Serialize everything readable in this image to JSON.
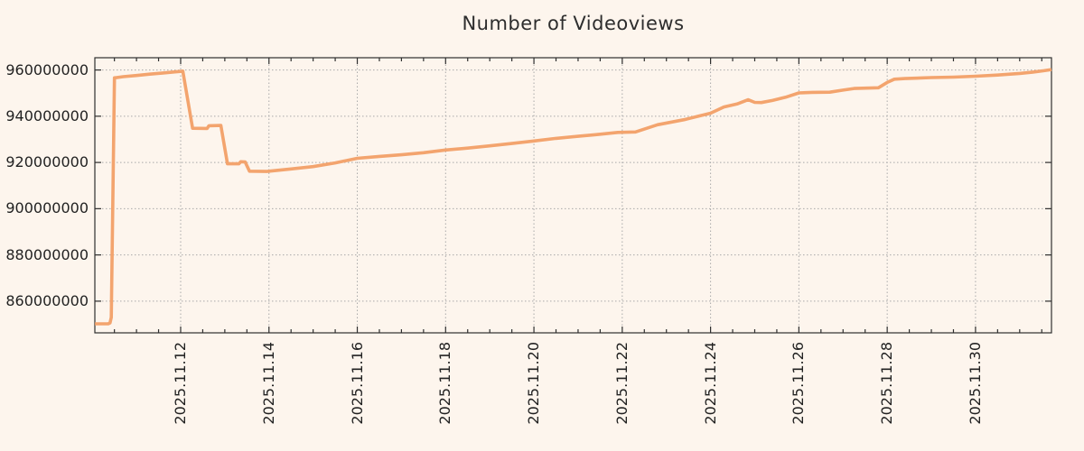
{
  "page": {
    "background": "#fdf5ed"
  },
  "colors": {
    "background": "#fdf5ed",
    "line": "#f3a46e",
    "grid": "#a9a9a9",
    "frame": "#2f2f2f",
    "text": "#222222",
    "title_text": "#2d2d2d"
  },
  "chart_data": {
    "type": "line",
    "title": "Number of Videoviews",
    "ylabel": "",
    "xlabel": "",
    "legend": "none",
    "grid": "dotted gray lines at every major x and y tick",
    "series": [
      {
        "name": "videoviews",
        "color": "#f3a46e",
        "points": [
          [
            10.06,
            850200000
          ],
          [
            10.36,
            850200000
          ],
          [
            10.4,
            850600000
          ],
          [
            10.43,
            853000000
          ],
          [
            10.5,
            956600000
          ],
          [
            10.7,
            957100000
          ],
          [
            11.0,
            957600000
          ],
          [
            11.3,
            958200000
          ],
          [
            11.6,
            958700000
          ],
          [
            11.9,
            959200000
          ],
          [
            12.05,
            959500000
          ],
          [
            12.27,
            934800000
          ],
          [
            12.6,
            934700000
          ],
          [
            12.64,
            935900000
          ],
          [
            12.91,
            936000000
          ],
          [
            13.06,
            919400000
          ],
          [
            13.32,
            919400000
          ],
          [
            13.36,
            920300000
          ],
          [
            13.46,
            920200000
          ],
          [
            13.56,
            916200000
          ],
          [
            13.95,
            916100000
          ],
          [
            14.5,
            917200000
          ],
          [
            15.0,
            918200000
          ],
          [
            15.5,
            919800000
          ],
          [
            16.0,
            921800000
          ],
          [
            16.5,
            922600000
          ],
          [
            17.0,
            923300000
          ],
          [
            17.5,
            924200000
          ],
          [
            18.0,
            925400000
          ],
          [
            18.5,
            926200000
          ],
          [
            19.0,
            927200000
          ],
          [
            19.5,
            928200000
          ],
          [
            20.0,
            929300000
          ],
          [
            20.5,
            930400000
          ],
          [
            21.0,
            931300000
          ],
          [
            21.4,
            932000000
          ],
          [
            21.9,
            933000000
          ],
          [
            22.3,
            933200000
          ],
          [
            22.8,
            936300000
          ],
          [
            23.4,
            938500000
          ],
          [
            24.0,
            941300000
          ],
          [
            24.3,
            944000000
          ],
          [
            24.6,
            945300000
          ],
          [
            24.85,
            947100000
          ],
          [
            25.0,
            946000000
          ],
          [
            25.15,
            945900000
          ],
          [
            25.4,
            946800000
          ],
          [
            25.7,
            948200000
          ],
          [
            26.0,
            950100000
          ],
          [
            26.3,
            950300000
          ],
          [
            26.7,
            950400000
          ],
          [
            27.0,
            951300000
          ],
          [
            27.25,
            952000000
          ],
          [
            27.8,
            952300000
          ],
          [
            28.0,
            954600000
          ],
          [
            28.16,
            956000000
          ],
          [
            28.4,
            956300000
          ],
          [
            29.0,
            956700000
          ],
          [
            29.5,
            956900000
          ],
          [
            30.0,
            957300000
          ],
          [
            30.5,
            957800000
          ],
          [
            31.0,
            958500000
          ],
          [
            31.3,
            959100000
          ],
          [
            31.55,
            959700000
          ],
          [
            31.72,
            960200000
          ]
        ]
      }
    ],
    "x_axis": {
      "note": "x values are decimal days counted in November 2025 (12 = 2025.11.12, 31.72 ~= 2025.12.01 17:00)",
      "xlim": [
        10.057,
        31.72
      ],
      "tick_values": [
        12,
        14,
        16,
        18,
        20,
        22,
        24,
        26,
        28,
        30
      ],
      "tick_labels": [
        "2025.11.12",
        "2025.11.14",
        "2025.11.16",
        "2025.11.18",
        "2025.11.20",
        "2025.11.22",
        "2025.11.24",
        "2025.11.26",
        "2025.11.28",
        "2025.11.30"
      ],
      "minor_tick_step_days": 0.5
    },
    "y_axis": {
      "ylim": [
        846300000,
        965300000
      ],
      "tick_values": [
        860000000,
        880000000,
        900000000,
        920000000,
        940000000,
        960000000
      ],
      "tick_labels": [
        "860000000",
        "880000000",
        "900000000",
        "920000000",
        "940000000",
        "960000000"
      ]
    }
  }
}
